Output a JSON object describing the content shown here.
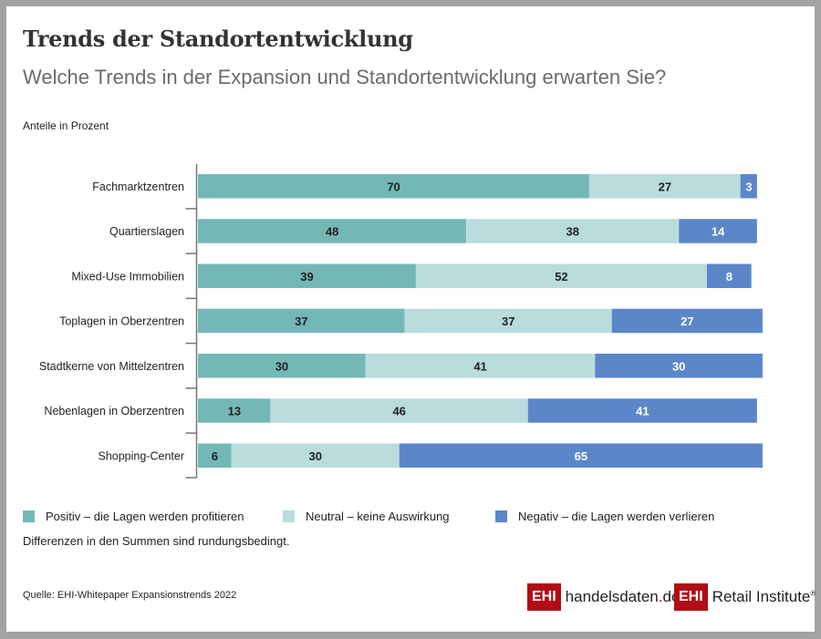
{
  "header": {
    "title": "Trends der Standortentwicklung",
    "subtitle": "Welche Trends in der Expansion und Standortentwicklung erwarten Sie?",
    "unit_label": "Anteile in Prozent"
  },
  "colors": {
    "positive": "#74b8b6",
    "neutral": "#b8dddc",
    "negative": "#5b87c9",
    "axis": "#777777",
    "label_dark": "#222222",
    "label_light": "#ffffff"
  },
  "chart_data": {
    "type": "bar",
    "orientation": "horizontal",
    "stacked": true,
    "title": "Trends der Standortentwicklung",
    "subtitle": "Welche Trends in der Expansion und Standortentwicklung erwarten Sie?",
    "xlabel": "",
    "ylabel": "Anteile in Prozent",
    "xlim": [
      0,
      100
    ],
    "grid": false,
    "legend_position": "bottom",
    "categories": [
      "Fachmarktzentren",
      "Quartierslagen",
      "Mixed-Use Immobilien",
      "Toplagen in Oberzentren",
      "Stadtkerne von Mittelzentren",
      "Nebenlagen in Oberzentren",
      "Shopping-Center"
    ],
    "series": [
      {
        "name": "Positiv – die Lagen werden profitieren",
        "key": "positive",
        "values": [
          70,
          48,
          39,
          37,
          30,
          13,
          6
        ]
      },
      {
        "name": "Neutral – keine Auswirkung",
        "key": "neutral",
        "values": [
          27,
          38,
          52,
          37,
          41,
          46,
          30
        ]
      },
      {
        "name": "Negativ – die Lagen werden verlieren",
        "key": "negative",
        "values": [
          3,
          14,
          8,
          27,
          30,
          41,
          65
        ]
      }
    ]
  },
  "legend": [
    {
      "label": "Positiv – die Lagen werden profitieren",
      "key": "positive"
    },
    {
      "label": "Neutral – keine Auswirkung",
      "key": "neutral"
    },
    {
      "label": "Negativ – die Lagen werden verlieren",
      "key": "negative"
    }
  ],
  "note": "Differenzen in den Summen sind rundungsbedingt.",
  "source": "Quelle: EHI-Whitepaper Expansionstrends 2022",
  "logos": {
    "handelsdaten": {
      "box": "EHI",
      "text_main": "handelsdaten",
      "text_dot": ".",
      "text_tail": "de"
    },
    "retail_institute": {
      "box": "EHI",
      "text": "Retail Institute",
      "reg": "®"
    }
  }
}
